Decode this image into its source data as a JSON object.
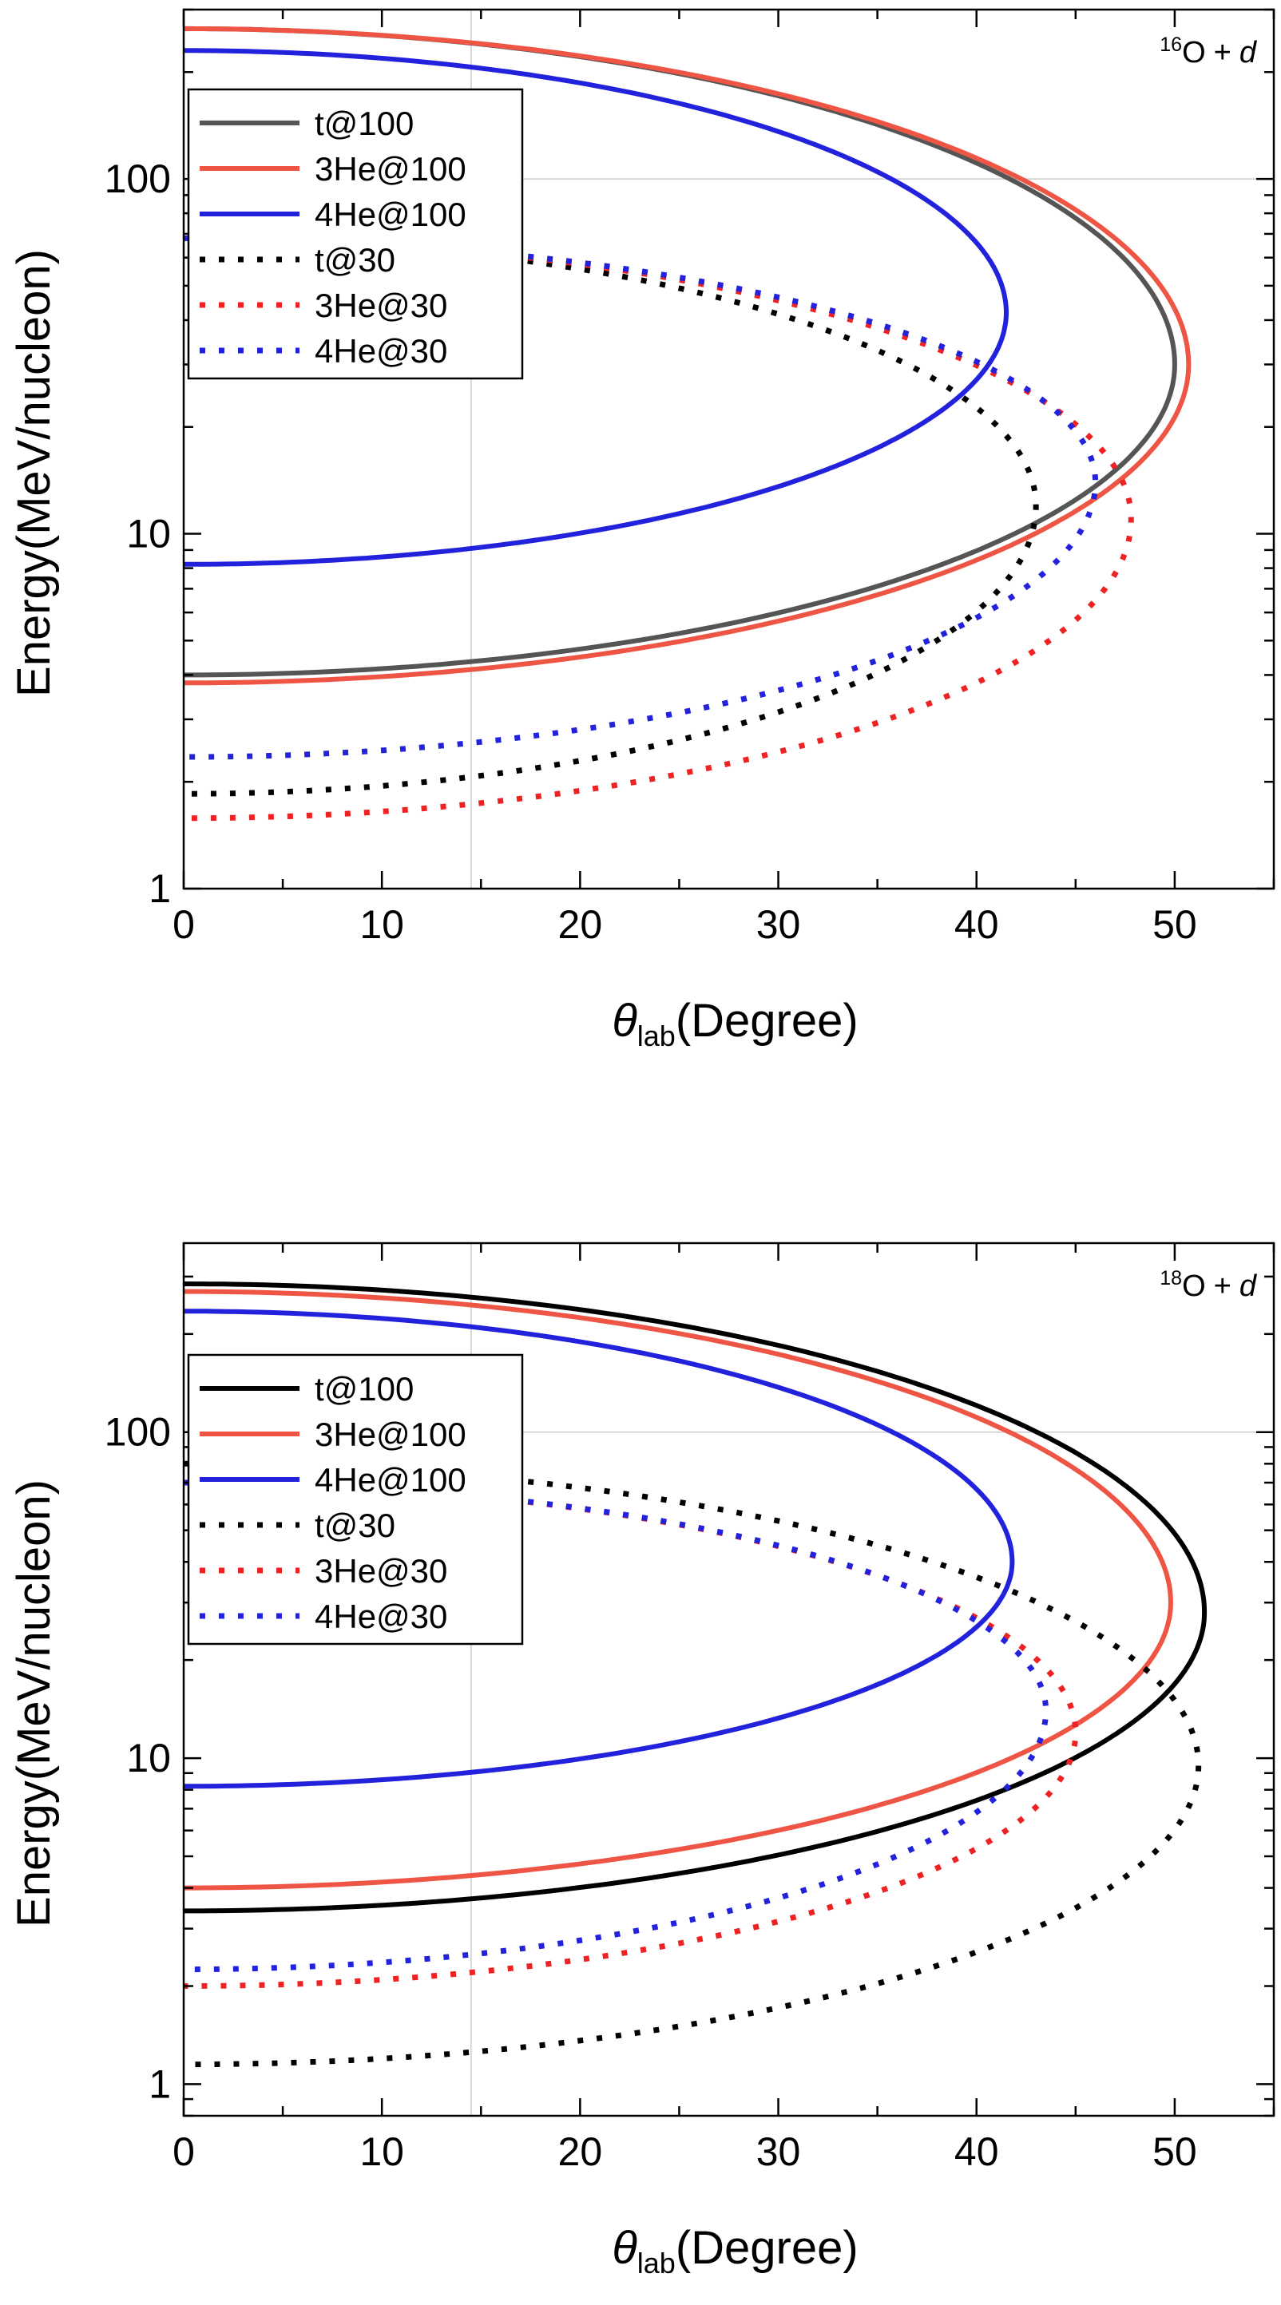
{
  "colors": {
    "t": "#555555",
    "t_panel2": "#000000",
    "he3": "#ee5544",
    "he4": "#2222dd",
    "he4_fade": "#555599",
    "grid": "#cccccc"
  },
  "chart_data": [
    {
      "type": "line",
      "annotation": {
        "sup": "16",
        "element": "O",
        "plus": "+",
        "projectile": "d"
      },
      "xlabel": {
        "symbol": "θ",
        "sub": "lab",
        "rest": "(Degree)"
      },
      "ylabel": "Energy(MeV/nucleon)",
      "yscale": "log",
      "xlim": [
        0,
        55
      ],
      "ylim": [
        1,
        300
      ],
      "xticks": [
        "0",
        "10",
        "20",
        "30",
        "40",
        "50"
      ],
      "yticks": [
        "1",
        "10",
        "100"
      ],
      "grid": {
        "x": [
          14.5
        ],
        "y": [
          100
        ]
      },
      "legend_position": "upper-left",
      "series": [
        {
          "name": "t@100",
          "style": "solid",
          "color": "#555555",
          "theta_max": 50.0,
          "e_upper0": 265,
          "e_lower0": 4.0,
          "e_turn": 30
        },
        {
          "name": "3He@100",
          "style": "solid",
          "color": "#ee5544",
          "theta_max": 50.7,
          "e_upper0": 265,
          "e_lower0": 3.8,
          "e_turn": 30
        },
        {
          "name": "4He@100",
          "style": "solid",
          "color": "#2222dd",
          "theta_max": 41.5,
          "e_upper0": 230,
          "e_lower0": 8.2,
          "e_turn": 42
        },
        {
          "name": "t@30",
          "style": "dotted",
          "color": "#000000",
          "theta_max": 43.0,
          "e_upper0": 68,
          "e_lower0": 1.85,
          "e_turn": 12
        },
        {
          "name": "3He@30",
          "style": "dotted",
          "color": "#ee2222",
          "theta_max": 47.8,
          "e_upper0": 68,
          "e_lower0": 1.58,
          "e_turn": 11
        },
        {
          "name": "4He@30",
          "style": "dotted",
          "color": "#2222dd",
          "theta_max": 46.0,
          "e_upper0": 68,
          "e_lower0": 2.35,
          "e_turn": 14
        }
      ]
    },
    {
      "type": "line",
      "annotation": {
        "sup": "18",
        "element": "O",
        "plus": "+",
        "projectile": "d"
      },
      "xlabel": {
        "symbol": "θ",
        "sub": "lab",
        "rest": "(Degree)"
      },
      "ylabel": "Energy(MeV/nucleon)",
      "yscale": "log",
      "xlim": [
        0,
        55
      ],
      "ylim": [
        0.8,
        380
      ],
      "xticks": [
        "0",
        "10",
        "20",
        "30",
        "40",
        "50"
      ],
      "yticks": [
        "1",
        "10",
        "100"
      ],
      "grid": {
        "x": [
          14.5
        ],
        "y": [
          100
        ]
      },
      "legend_position": "upper-left",
      "series": [
        {
          "name": "t@100",
          "style": "solid",
          "color": "#000000",
          "theta_max": 51.5,
          "e_upper0": 285,
          "e_lower0": 3.4,
          "e_turn": 28
        },
        {
          "name": "3He@100",
          "style": "solid",
          "color": "#ee5544",
          "theta_max": 49.8,
          "e_upper0": 270,
          "e_lower0": 4.0,
          "e_turn": 30
        },
        {
          "name": "4He@100",
          "style": "solid",
          "color": "#2222dd",
          "theta_max": 41.8,
          "e_upper0": 235,
          "e_lower0": 8.2,
          "e_turn": 40
        },
        {
          "name": "t@30",
          "style": "dotted",
          "color": "#000000",
          "theta_max": 51.2,
          "e_upper0": 80,
          "e_lower0": 1.15,
          "e_turn": 9.5
        },
        {
          "name": "3He@30",
          "style": "dotted",
          "color": "#ee2222",
          "theta_max": 45.0,
          "e_upper0": 70,
          "e_lower0": 2.0,
          "e_turn": 12
        },
        {
          "name": "4He@30",
          "style": "dotted",
          "color": "#2222dd",
          "theta_max": 43.5,
          "e_upper0": 70,
          "e_lower0": 2.25,
          "e_turn": 14
        }
      ]
    }
  ]
}
